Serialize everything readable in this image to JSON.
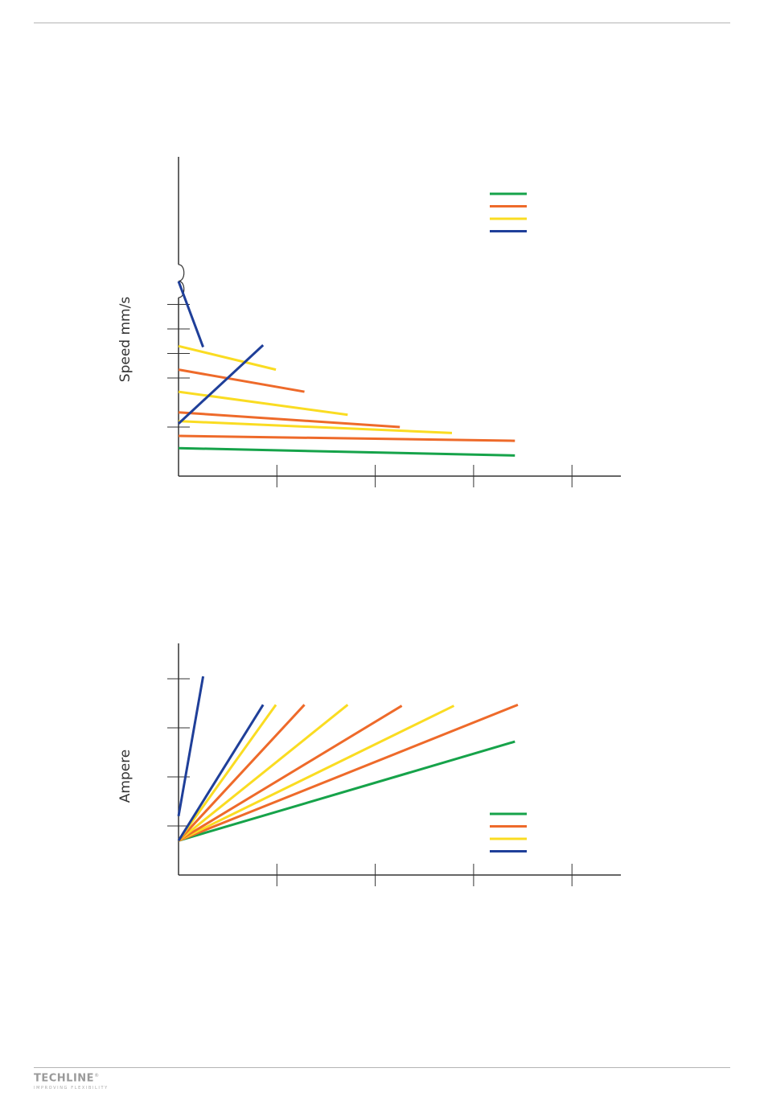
{
  "colors": {
    "green": "#16a34a",
    "orange": "#ee6a2a",
    "yellow": "#fadc22",
    "blue": "#1f3f99",
    "axis": "#333333"
  },
  "brand": {
    "name": "TECHLINE",
    "tagline": "IMPROVING FLEXIBILITY",
    "mark": "®"
  },
  "chart_data": [
    {
      "type": "line",
      "ylabel": "Speed mm/s",
      "axis_break": true,
      "grid": false,
      "legend": {
        "placement": "top-right",
        "colors": [
          "green",
          "orange",
          "yellow",
          "blue"
        ]
      },
      "xlim": [
        0,
        4.5
      ],
      "x_ticks": [
        1,
        2,
        3,
        4
      ],
      "ylim": [
        0,
        7
      ],
      "y_ticks": [
        1,
        2,
        3,
        5,
        6
      ],
      "series": [
        {
          "color": "green",
          "points": [
            [
              0,
              0.57
            ],
            [
              3.42,
              0.42
            ]
          ]
        },
        {
          "color": "orange",
          "points": [
            [
              0,
              0.82
            ],
            [
              3.42,
              0.72
            ]
          ]
        },
        {
          "color": "yellow",
          "points": [
            [
              0,
              1.12
            ],
            [
              2.78,
              0.88
            ]
          ]
        },
        {
          "color": "orange",
          "points": [
            [
              0,
              1.3
            ],
            [
              2.25,
              1.0
            ]
          ]
        },
        {
          "color": "yellow",
          "points": [
            [
              0,
              1.72
            ],
            [
              1.72,
              1.25
            ]
          ]
        },
        {
          "color": "orange",
          "points": [
            [
              0,
              2.17
            ],
            [
              1.28,
              1.72
            ]
          ]
        },
        {
          "color": "yellow",
          "points": [
            [
              0,
              2.65
            ],
            [
              0.99,
              2.17
            ]
          ]
        },
        {
          "color": "blue",
          "points": [
            [
              0,
              3.57
            ],
            [
              0.86,
              2.67
            ]
          ]
        },
        {
          "color": "blue",
          "points": [
            [
              0,
              6.47
            ],
            [
              0.25,
              5.13
            ]
          ]
        }
      ]
    },
    {
      "type": "line",
      "ylabel": "Ampere",
      "grid": false,
      "legend": {
        "placement": "bottom-right",
        "colors": [
          "green",
          "orange",
          "yellow",
          "blue"
        ]
      },
      "xlim": [
        0,
        4.5
      ],
      "x_ticks": [
        1,
        2,
        3,
        4
      ],
      "ylim": [
        0,
        4.7
      ],
      "y_ticks": [
        1,
        2,
        3,
        4
      ],
      "series": [
        {
          "color": "green",
          "points": [
            [
              0,
              0.7
            ],
            [
              3.42,
              2.72
            ]
          ]
        },
        {
          "color": "orange",
          "points": [
            [
              0,
              0.7
            ],
            [
              3.45,
              3.47
            ]
          ]
        },
        {
          "color": "yellow",
          "points": [
            [
              0,
              0.7
            ],
            [
              2.8,
              3.45
            ]
          ]
        },
        {
          "color": "orange",
          "points": [
            [
              0,
              0.7
            ],
            [
              2.27,
              3.45
            ]
          ]
        },
        {
          "color": "yellow",
          "points": [
            [
              0,
              0.7
            ],
            [
              1.72,
              3.47
            ]
          ]
        },
        {
          "color": "orange",
          "points": [
            [
              0,
              0.7
            ],
            [
              1.28,
              3.47
            ]
          ]
        },
        {
          "color": "yellow",
          "points": [
            [
              0,
              0.7
            ],
            [
              0.99,
              3.47
            ]
          ]
        },
        {
          "color": "blue",
          "points": [
            [
              0,
              0.7
            ],
            [
              0.86,
              3.47
            ]
          ]
        },
        {
          "color": "blue",
          "points": [
            [
              0,
              1.2
            ],
            [
              0.25,
              4.05
            ]
          ]
        }
      ]
    }
  ]
}
